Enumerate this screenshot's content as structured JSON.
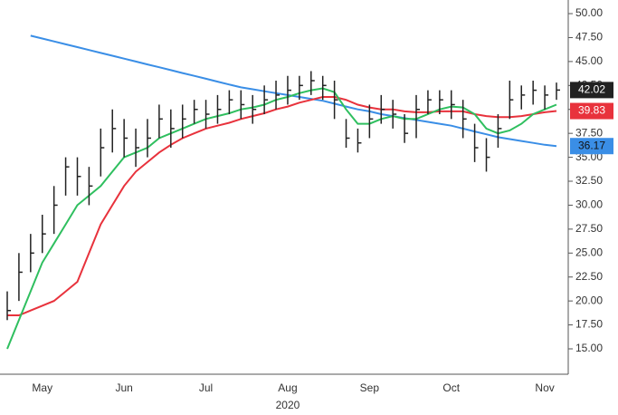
{
  "chart_data": {
    "type": "ohlc",
    "categories": [
      null,
      null,
      null,
      "May",
      null,
      null,
      null,
      null,
      null,
      null,
      "Jun",
      null,
      null,
      null,
      null,
      null,
      null,
      "Jul",
      null,
      null,
      null,
      null,
      null,
      null,
      "Aug",
      null,
      null,
      null,
      null,
      null,
      null,
      "Sep",
      null,
      null,
      null,
      null,
      null,
      null,
      "Oct",
      null,
      null,
      null,
      null,
      null,
      null,
      null,
      "Nov",
      null
    ],
    "year_label": "2020",
    "bars": {
      "color": "#222222",
      "high": [
        21,
        25,
        27,
        29,
        32,
        35,
        35,
        34,
        38,
        40,
        39,
        38,
        39,
        40.5,
        40,
        40.5,
        41,
        41,
        41.5,
        42,
        42,
        41.5,
        42.5,
        43,
        43.5,
        43.5,
        44,
        43.5,
        43,
        39,
        38,
        40.5,
        41.5,
        41,
        39.5,
        41.5,
        42,
        42,
        42,
        41,
        38.5,
        37,
        39.5,
        43,
        42.5,
        43,
        42.5,
        42.8
      ],
      "low": [
        18,
        20,
        23,
        25,
        27,
        31,
        31,
        30,
        33,
        35.5,
        35,
        34,
        35,
        37,
        36,
        37,
        38.5,
        38,
        38.5,
        39.5,
        39,
        38.5,
        39.5,
        40,
        40.5,
        41,
        41.5,
        41,
        39,
        36,
        35.5,
        37,
        38.5,
        38,
        36.5,
        37,
        39.5,
        39.5,
        39,
        37,
        34.5,
        33.5,
        36,
        39,
        40,
        40.5,
        40,
        41
      ],
      "close": [
        19,
        23,
        25,
        27,
        30,
        34,
        33,
        32,
        36,
        38,
        37,
        36,
        37,
        39,
        38,
        39,
        40,
        39.5,
        40,
        41,
        40.5,
        40,
        41,
        41.5,
        42,
        42.5,
        43,
        42.5,
        41,
        37,
        36.5,
        39,
        40,
        39.5,
        37.5,
        40,
        41,
        41,
        40.5,
        39,
        36,
        35,
        38,
        41,
        41.5,
        42,
        41.5,
        42.02
      ]
    },
    "series": [
      {
        "color": "#2fbf5f",
        "values": [
          15,
          18,
          21,
          24,
          26,
          28,
          30,
          31,
          32,
          33.5,
          35,
          35.5,
          36,
          37,
          37.5,
          38,
          38.5,
          39,
          39.3,
          39.6,
          40,
          40.2,
          40.5,
          41,
          41.3,
          41.7,
          42,
          42.2,
          41.8,
          40,
          38.5,
          38.5,
          39,
          39.3,
          39,
          39,
          39.5,
          40,
          40.3,
          40.2,
          39.5,
          38,
          37.5,
          37.8,
          38.5,
          39.5,
          40,
          40.5
        ]
      },
      {
        "color": "#e8323c",
        "values": [
          18.5,
          18.5,
          19,
          19.5,
          20,
          21,
          22,
          25,
          28,
          30,
          32,
          33.5,
          34.5,
          35.5,
          36.3,
          37,
          37.5,
          38,
          38.3,
          38.6,
          39,
          39.3,
          39.6,
          40,
          40.3,
          40.7,
          41,
          41.3,
          41.3,
          41,
          40.5,
          40.2,
          40,
          40,
          39.8,
          39.7,
          39.7,
          39.8,
          39.8,
          39.8,
          39.5,
          39.3,
          39.2,
          39.2,
          39.3,
          39.5,
          39.7,
          39.83
        ]
      },
      {
        "color": "#3a8ee6",
        "values": [
          null,
          null,
          47.7,
          47.4,
          47.1,
          46.8,
          46.5,
          46.2,
          45.9,
          45.6,
          45.3,
          45.0,
          44.7,
          44.4,
          44.1,
          43.8,
          43.5,
          43.2,
          42.9,
          42.6,
          42.3,
          42.1,
          41.9,
          41.7,
          41.5,
          41.3,
          41.1,
          40.9,
          40.6,
          40.3,
          40.0,
          39.8,
          39.5,
          39.3,
          39.1,
          38.9,
          38.7,
          38.5,
          38.3,
          38.0,
          37.7,
          37.4,
          37.1,
          36.9,
          36.7,
          36.5,
          36.3,
          36.17
        ]
      }
    ],
    "ylim": [
      12.35,
      50.95
    ],
    "yticks": [
      {
        "value": 15,
        "label": "15.00"
      },
      {
        "value": 17.5,
        "label": "17.50"
      },
      {
        "value": 20,
        "label": "20.00"
      },
      {
        "value": 22.5,
        "label": "22.50"
      },
      {
        "value": 25,
        "label": "25.00"
      },
      {
        "value": 27.5,
        "label": "27.50"
      },
      {
        "value": 30,
        "label": "30.00"
      },
      {
        "value": 32.5,
        "label": "32.50"
      },
      {
        "value": 35,
        "label": "35.00"
      },
      {
        "value": 37.5,
        "label": "37.50"
      },
      {
        "value": 40,
        "label": "40.00"
      },
      {
        "value": 42.5,
        "label": "42.50"
      },
      {
        "value": 45,
        "label": "45.00"
      },
      {
        "value": 47.5,
        "label": "47.50"
      },
      {
        "value": 50,
        "label": "50.00"
      }
    ]
  }
}
